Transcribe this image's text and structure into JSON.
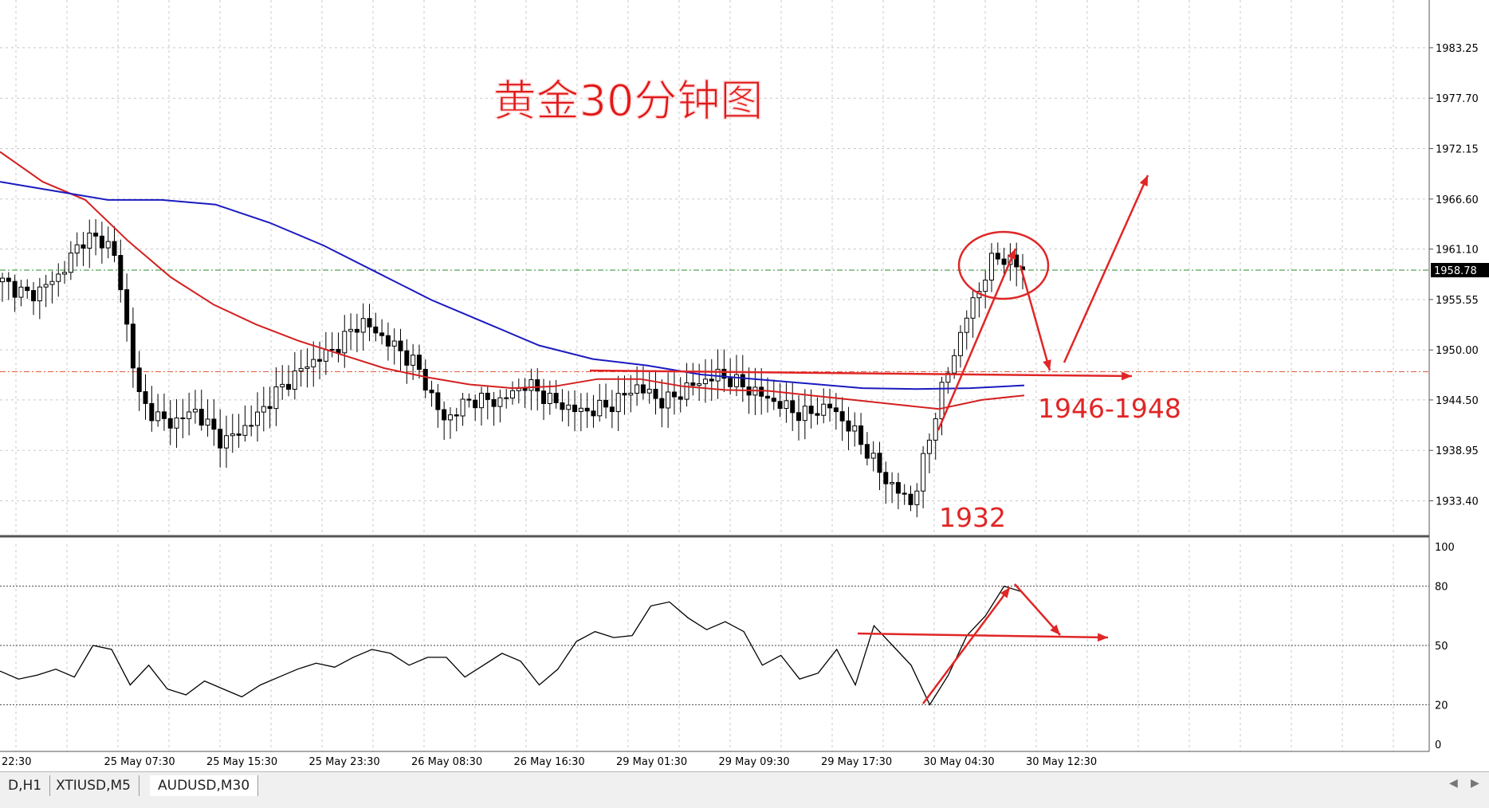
{
  "chart_data": [
    {
      "type": "candlestick",
      "title": "黄金30分钟图",
      "ylim": [
        1929.5,
        1988.5
      ],
      "y_ticks": [
        "1983.25",
        "1977.70",
        "1972.15",
        "1966.60",
        "1961.10",
        "1955.55",
        "1950.00",
        "1944.50",
        "1938.95",
        "1933.40"
      ],
      "x_ticks": [
        "22:30",
        "25 May 07:30",
        "25 May 15:30",
        "25 May 23:30",
        "26 May 08:30",
        "26 May 16:30",
        "29 May 01:30",
        "29 May 09:30",
        "29 May 17:30",
        "30 May 04:30",
        "30 May 12:30"
      ],
      "current_price": "1958.78",
      "horizontal_lines": [
        {
          "price": 1958.78,
          "style": "dash-dot",
          "color": "#2e8b2e"
        },
        {
          "price": 1947.6,
          "style": "dash-dot",
          "color": "#e05a3a"
        }
      ],
      "price_path": [
        1957.5,
        1955.9,
        1958.0,
        1962.5,
        1961.5,
        1944.2,
        1941.8,
        1943.3,
        1939.8,
        1941.9,
        1945.5,
        1948.3,
        1950.0,
        1953.2,
        1950.9,
        1948.4,
        1942.2,
        1944.6,
        1944.3,
        1946.3,
        1944.2,
        1943.2,
        1943.8,
        1946.0,
        1944.2,
        1946.1,
        1947.3,
        1945.8,
        1944.3,
        1942.8,
        1943.8,
        1940.5,
        1935.8,
        1933.0,
        1945.0,
        1954.0,
        1960.5,
        1959.0
      ],
      "series": [
        {
          "name": "",
          "color": "#d42020",
          "values": [
            1971.8,
            1968.5,
            1966.5,
            1962.0,
            1958.0,
            1955.0,
            1952.8,
            1951.0,
            1949.5,
            1948.0,
            1947.0,
            1946.2,
            1945.8,
            1946.0,
            1946.8,
            1946.8,
            1946.0,
            1945.6,
            1945.5,
            1945.0,
            1944.5,
            1944.0,
            1943.5,
            1944.5,
            1945.0
          ]
        },
        {
          "name": "",
          "color": "#1a1ac0",
          "values": [
            1968.5,
            1967.5,
            1966.5,
            1966.5,
            1966.0,
            1964.0,
            1961.5,
            1958.5,
            1955.5,
            1953.0,
            1950.5,
            1949.0,
            1948.3,
            1947.3,
            1946.8,
            1946.3,
            1945.8,
            1945.7,
            1945.8,
            1946.1
          ]
        }
      ],
      "annotations": [
        "1946-1948",
        "1932"
      ]
    },
    {
      "type": "line",
      "ylim": [
        0,
        100
      ],
      "y_ticks": [
        "100",
        "80",
        "50",
        "20",
        "0"
      ],
      "levels": [
        80,
        50,
        20
      ],
      "values": [
        37,
        33,
        35,
        38,
        34,
        50,
        48,
        30,
        40,
        28,
        25,
        32,
        28,
        24,
        30,
        34,
        38,
        41,
        39,
        44,
        48,
        46,
        40,
        44,
        44,
        34,
        40,
        46,
        42,
        30,
        38,
        52,
        57,
        54,
        55,
        70,
        72,
        64,
        58,
        62,
        57,
        40,
        45,
        33,
        36,
        48,
        30,
        60,
        50,
        40,
        20,
        35,
        55,
        65,
        80,
        77
      ]
    }
  ],
  "tabs": [
    "D,H1",
    "XTIUSD,M5",
    "AUDUSD,M30"
  ]
}
